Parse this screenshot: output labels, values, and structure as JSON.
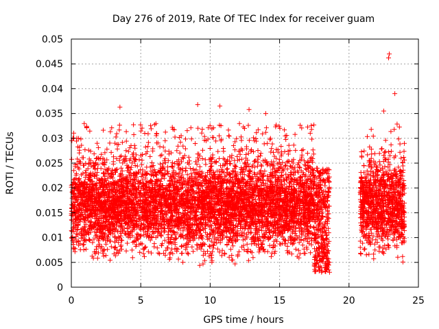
{
  "chart_data": {
    "type": "scatter",
    "title": "Day 276 of 2019, Rate Of TEC Index for receiver guam",
    "xlabel": "GPS time / hours",
    "ylabel": "ROTI / TECUs",
    "xlim": [
      0,
      25
    ],
    "ylim": [
      0,
      0.05
    ],
    "grid": true,
    "marker": "+",
    "marker_color": "#ff0000",
    "x_ticks": [
      0,
      5,
      10,
      15,
      20,
      25
    ],
    "x_tick_labels": [
      "0",
      "5",
      "10",
      "15",
      "20",
      "25"
    ],
    "y_ticks": [
      0,
      0.005,
      0.01,
      0.015,
      0.02,
      0.025,
      0.03,
      0.035,
      0.04,
      0.045,
      0.05
    ],
    "y_tick_labels": [
      "0",
      "0.005",
      "0.01",
      "0.015",
      "0.02",
      "0.025",
      "0.03",
      "0.035",
      "0.04",
      "0.045",
      "0.05"
    ],
    "series": [
      {
        "name": "ROTI",
        "segments": [
          {
            "x_start": 0.0,
            "x_end": 18.6
          },
          {
            "x_start": 20.8,
            "x_end": 24.0
          }
        ],
        "typical_range": [
          0.004,
          0.025
        ],
        "notable_points": [
          {
            "x": 22.9,
            "y": 0.047
          },
          {
            "x": 22.85,
            "y": 0.0462
          },
          {
            "x": 23.3,
            "y": 0.039
          },
          {
            "x": 3.5,
            "y": 0.0363
          },
          {
            "x": 9.1,
            "y": 0.0368
          },
          {
            "x": 10.7,
            "y": 0.0365
          },
          {
            "x": 12.8,
            "y": 0.0358
          },
          {
            "x": 14.0,
            "y": 0.035
          },
          {
            "x": 22.5,
            "y": 0.0355
          },
          {
            "x": 0.4,
            "y": 0.03
          },
          {
            "x": 18.6,
            "y": 0.003
          }
        ]
      }
    ]
  }
}
